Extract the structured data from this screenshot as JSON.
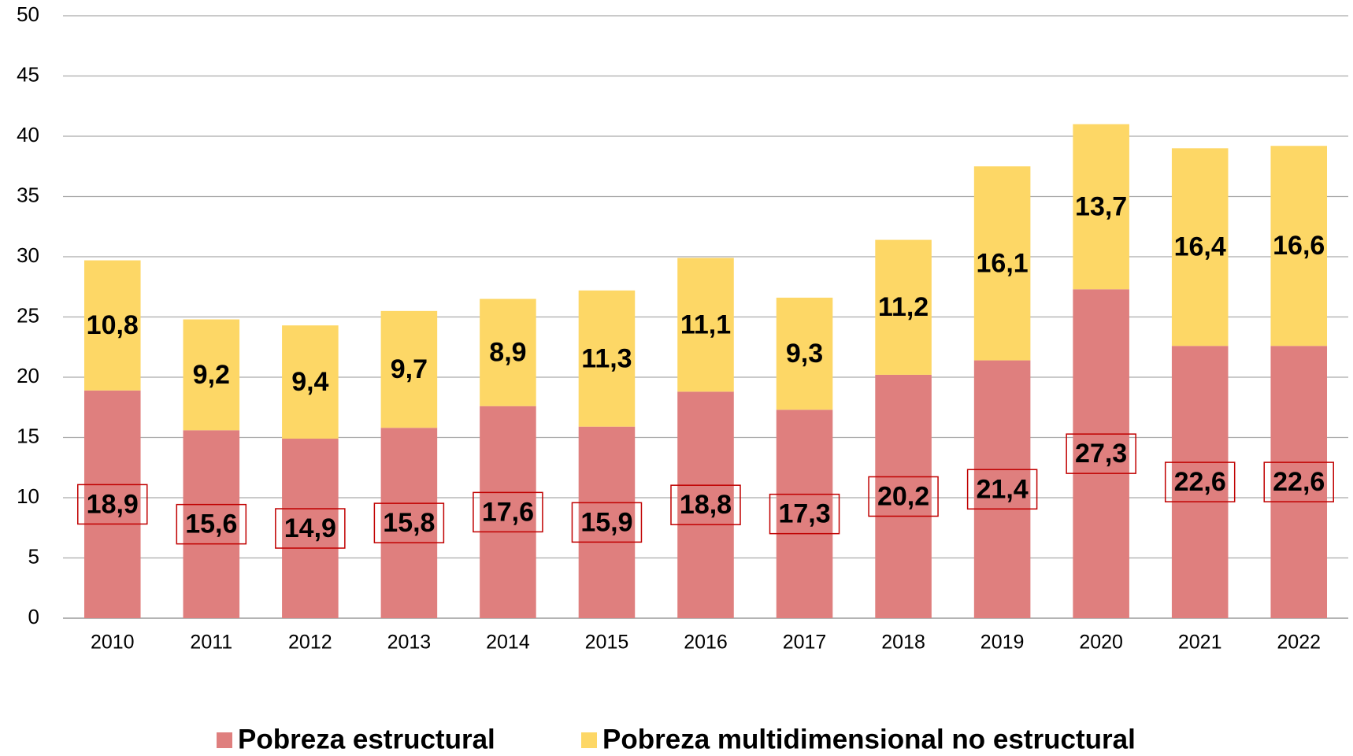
{
  "chart_data": {
    "type": "stacked_bar",
    "categories": [
      "2010",
      "2011",
      "2012",
      "2013",
      "2014",
      "2015",
      "2016",
      "2017",
      "2018",
      "2019",
      "2020",
      "2021",
      "2022"
    ],
    "series": [
      {
        "name": "Pobreza estructural",
        "color": "#df7f7e",
        "values": [
          18.9,
          15.6,
          14.9,
          15.8,
          17.6,
          15.9,
          18.8,
          17.3,
          20.2,
          21.4,
          27.3,
          22.6,
          22.6
        ],
        "value_labels": [
          "18,9",
          "15,6",
          "14,9",
          "15,8",
          "17,6",
          "15,9",
          "18,8",
          "17,3",
          "20,2",
          "21,4",
          "27,3",
          "22,6",
          "22,6"
        ]
      },
      {
        "name": "Pobreza multidimensional no estructural",
        "color": "#fdd766",
        "values": [
          10.8,
          9.2,
          9.4,
          9.7,
          8.9,
          11.3,
          11.1,
          9.3,
          11.2,
          16.1,
          13.7,
          16.4,
          16.6
        ],
        "value_labels": [
          "10,8",
          "9,2",
          "9,4",
          "9,7",
          "8,9",
          "11,3",
          "11,1",
          "9,3",
          "11,2",
          "16,1",
          "13,7",
          "16,4",
          "16,6"
        ]
      }
    ],
    "ylim": [
      0,
      50
    ],
    "yticks": [
      0,
      5,
      10,
      15,
      20,
      25,
      30,
      35,
      40,
      45,
      50
    ],
    "grid": true,
    "legend": "bottom"
  }
}
